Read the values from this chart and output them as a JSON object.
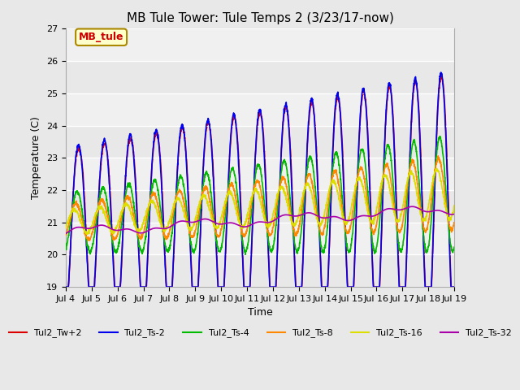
{
  "title": "MB Tule Tower: Tule Temps 2 (3/23/17-now)",
  "xlabel": "Time",
  "ylabel": "Temperature (C)",
  "ylim": [
    19.0,
    27.0
  ],
  "yticks": [
    19.0,
    20.0,
    21.0,
    22.0,
    23.0,
    24.0,
    25.0,
    26.0,
    27.0
  ],
  "xlim_start": 0,
  "xlim_end": 15,
  "xtick_labels": [
    "Jul 4",
    "Jul 5",
    "Jul 6",
    "Jul 7",
    "Jul 8",
    "Jul 9",
    "Jul 10",
    "Jul 11",
    "Jul 12",
    "Jul 13",
    "Jul 14",
    "Jul 15",
    "Jul 16",
    "Jul 17",
    "Jul 18",
    "Jul 19"
  ],
  "series": [
    {
      "label": "Tul2_Tw+2",
      "color": "#dd0000",
      "lw": 1.2
    },
    {
      "label": "Tul2_Ts-2",
      "color": "#0000ee",
      "lw": 1.2
    },
    {
      "label": "Tul2_Ts-4",
      "color": "#00bb00",
      "lw": 1.2
    },
    {
      "label": "Tul2_Ts-8",
      "color": "#ff8800",
      "lw": 1.2
    },
    {
      "label": "Tul2_Ts-16",
      "color": "#dddd00",
      "lw": 1.2
    },
    {
      "label": "Tul2_Ts-32",
      "color": "#aa00aa",
      "lw": 1.2
    }
  ],
  "annotation_text": "MB_tule",
  "bg_color": "#e8e8e8",
  "plot_bg": "#f0f0f0",
  "grid_color": "#ffffff",
  "title_fontsize": 11,
  "label_fontsize": 9,
  "tick_fontsize": 8
}
